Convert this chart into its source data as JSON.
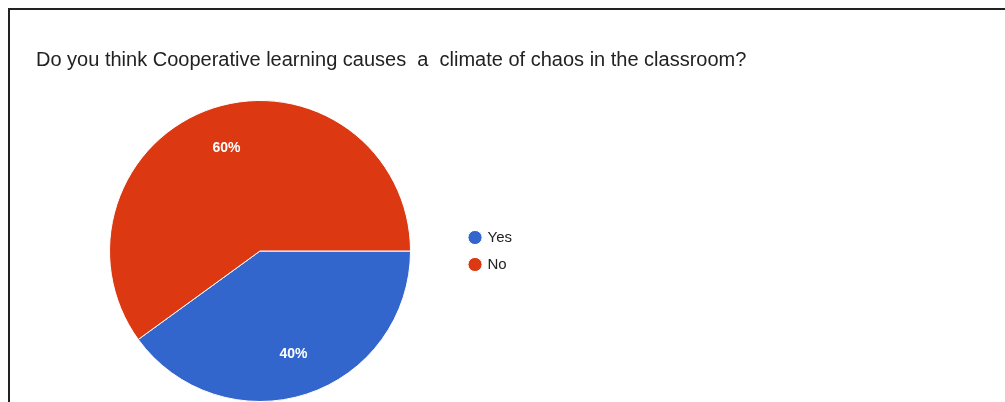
{
  "chart_data": {
    "type": "pie",
    "title": "Do you think Cooperative learning causes  a  climate of chaos in the classroom?",
    "categories": [
      "Yes",
      "No"
    ],
    "values": [
      40,
      60
    ],
    "colors": [
      "#3366cc",
      "#dc3912"
    ],
    "value_labels": [
      "40%",
      "60%"
    ],
    "legend": "right"
  }
}
